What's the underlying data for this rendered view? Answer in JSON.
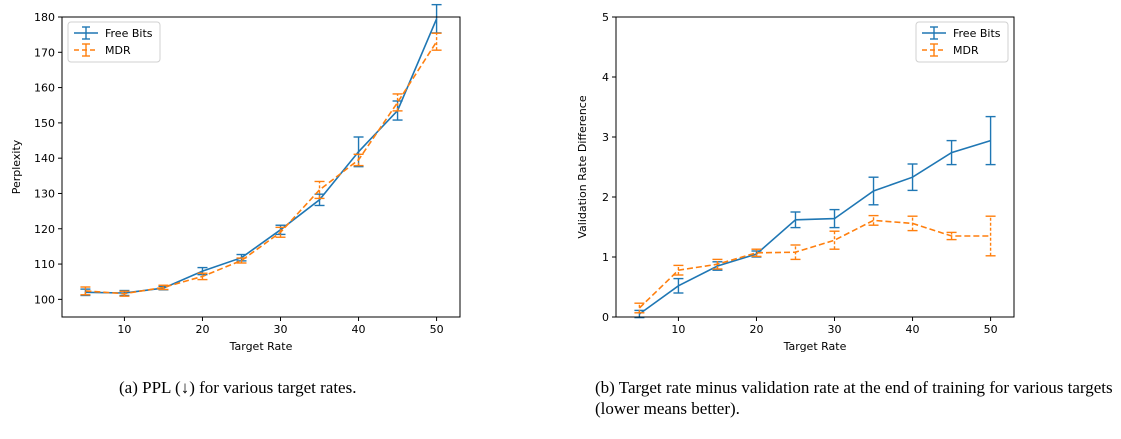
{
  "chart_data": [
    {
      "type": "line",
      "xlabel": "Target Rate",
      "ylabel": "Perplexity",
      "xlim": [
        2,
        53
      ],
      "ylim": [
        95,
        180
      ],
      "xticks": [
        10,
        20,
        30,
        40,
        50
      ],
      "yticks": [
        100,
        110,
        120,
        130,
        140,
        150,
        160,
        170,
        180
      ],
      "legend_position": "upper-left",
      "grid": false,
      "series": [
        {
          "name": "Free Bits",
          "color": "#1f77b4",
          "dashed": false,
          "x": [
            5,
            10,
            15,
            20,
            25,
            30,
            35,
            40,
            45,
            50
          ],
          "y": [
            102.0,
            101.8,
            103.2,
            108.0,
            111.8,
            119.7,
            128.2,
            141.8,
            153.5,
            179.5
          ],
          "err": [
            0.9,
            0.7,
            0.5,
            1.0,
            0.9,
            1.3,
            1.6,
            4.2,
            2.7,
            4.0
          ]
        },
        {
          "name": "MDR",
          "color": "#ff7f0e",
          "dashed": true,
          "x": [
            5,
            10,
            15,
            20,
            25,
            30,
            35,
            40,
            45,
            50
          ],
          "y": [
            102.4,
            101.6,
            103.4,
            106.5,
            111.0,
            119.0,
            131.0,
            139.5,
            155.8,
            173.0
          ],
          "err": [
            1.1,
            0.7,
            0.6,
            0.9,
            0.7,
            1.4,
            2.4,
            1.6,
            2.4,
            2.4
          ]
        }
      ]
    },
    {
      "type": "line",
      "xlabel": "Target Rate",
      "ylabel": "Validation Rate Difference",
      "xlim": [
        2,
        53
      ],
      "ylim": [
        0,
        5
      ],
      "xticks": [
        10,
        20,
        30,
        40,
        50
      ],
      "yticks": [
        0,
        1,
        2,
        3,
        4,
        5
      ],
      "legend_position": "upper-right",
      "grid": false,
      "series": [
        {
          "name": "Free Bits",
          "color": "#1f77b4",
          "dashed": false,
          "x": [
            5,
            10,
            15,
            20,
            25,
            30,
            35,
            40,
            45,
            50
          ],
          "y": [
            0.05,
            0.52,
            0.85,
            1.05,
            1.62,
            1.64,
            2.1,
            2.33,
            2.74,
            2.94
          ],
          "err": [
            0.06,
            0.12,
            0.07,
            0.05,
            0.13,
            0.15,
            0.23,
            0.22,
            0.2,
            0.4
          ]
        },
        {
          "name": "MDR",
          "color": "#ff7f0e",
          "dashed": true,
          "x": [
            5,
            10,
            15,
            20,
            25,
            30,
            35,
            40,
            45,
            50
          ],
          "y": [
            0.15,
            0.78,
            0.88,
            1.07,
            1.08,
            1.28,
            1.61,
            1.56,
            1.35,
            1.35
          ],
          "err": [
            0.08,
            0.08,
            0.08,
            0.06,
            0.12,
            0.15,
            0.08,
            0.12,
            0.06,
            0.33
          ]
        }
      ]
    }
  ],
  "captions": {
    "a": "(a) PPL (↓) for various target rates.",
    "b": "(b) Target rate minus validation rate at the end of training for various targets (lower means better)."
  }
}
